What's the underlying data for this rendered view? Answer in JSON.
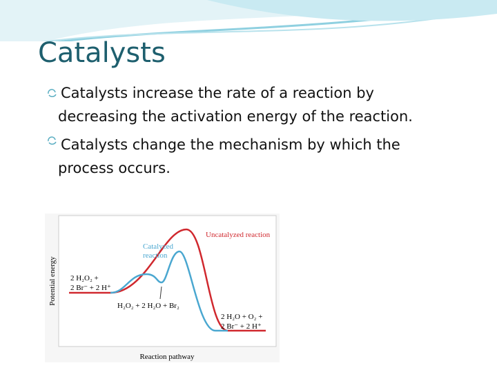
{
  "title": "Catalysts",
  "bullets": [
    "Catalysts increase the rate of a reaction by decreasing the activation energy of the reaction.",
    "Catalysts change the mechanism by which the process occurs."
  ],
  "figure": {
    "uncatalyzed_label": "Uncatalyzed reaction",
    "catalyzed_label": [
      "Catalyzed",
      "reaction"
    ],
    "y_axis_label": "Potential energy",
    "x_axis_label": "Reaction pathway",
    "reactants": [
      "2 H₂O₂ +",
      "2 Br⁻ + 2 H⁺"
    ],
    "intermediate": "H₂O₂ + 2 H₂O + Br₂",
    "products": [
      "2 H₂O + O₂ +",
      "2 Br⁻ + 2 H⁺"
    ]
  }
}
